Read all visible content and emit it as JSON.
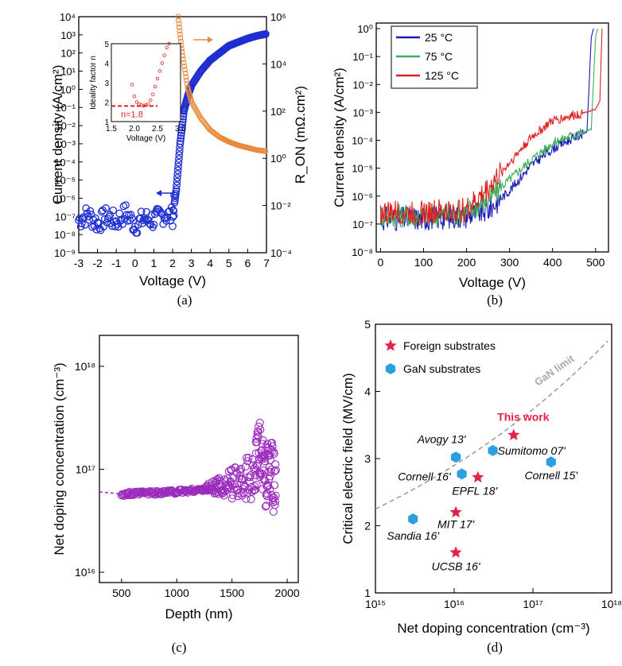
{
  "panels": {
    "a": {
      "label": "(a)"
    },
    "b": {
      "label": "(b)"
    },
    "c": {
      "label": "(c)"
    },
    "d": {
      "label": "(d)"
    }
  },
  "chart_data": [
    {
      "id": "a",
      "type": "scatter",
      "xlabel": "Voltage (V)",
      "ylabel": "Current density  (A/cm²)",
      "y2label": "R_ON  (mΩ.cm²)",
      "xlim": [
        -3,
        7
      ],
      "ylim_log10": [
        -9,
        4
      ],
      "y2lim_log10": [
        -4,
        6
      ],
      "x_ticks": [
        "-3",
        "-2",
        "-1",
        "0",
        "1",
        "2",
        "3",
        "4",
        "5",
        "6",
        "7"
      ],
      "y_ticks": [
        "10⁻⁹",
        "10⁻⁸",
        "10⁻⁷",
        "10⁻⁶",
        "10⁻⁵",
        "10⁻⁴",
        "10⁻³",
        "10⁻²",
        "10⁻¹",
        "10⁰",
        "10¹",
        "10²",
        "10³",
        "10⁴"
      ],
      "y2_ticks": [
        "10⁻⁴",
        "10⁻²",
        "10⁰",
        "10²",
        "10⁴",
        "10⁶"
      ],
      "series": [
        {
          "name": "Current density",
          "color": "#1f2fd1",
          "axis": "left",
          "points": [
            [
              -3,
              -7.2
            ],
            [
              -2.5,
              -6.9
            ],
            [
              -2,
              -7.4
            ],
            [
              -1.5,
              -7.0
            ],
            [
              -1,
              -7.3
            ],
            [
              -0.5,
              -6.8
            ],
            [
              0,
              -7.5
            ],
            [
              0.5,
              -7.1
            ],
            [
              1,
              -7.2
            ],
            [
              1.5,
              -6.9
            ],
            [
              2,
              -7.0
            ],
            [
              2.2,
              -5.5
            ],
            [
              2.4,
              -3.0
            ],
            [
              2.6,
              -1.2
            ],
            [
              2.8,
              -0.4
            ],
            [
              3,
              0.2
            ],
            [
              3.5,
              1.0
            ],
            [
              4,
              1.6
            ],
            [
              4.5,
              2.0
            ],
            [
              5,
              2.4
            ],
            [
              5.5,
              2.6
            ],
            [
              6,
              2.8
            ],
            [
              6.5,
              2.95
            ],
            [
              7,
              3.05
            ]
          ]
        },
        {
          "name": "R_ON",
          "color": "#e8893a",
          "axis": "right",
          "points": [
            [
              2.3,
              6.0
            ],
            [
              2.5,
              4.5
            ],
            [
              2.8,
              3.0
            ],
            [
              3,
              2.4
            ],
            [
              3.5,
              1.7
            ],
            [
              4,
              1.2
            ],
            [
              4.5,
              0.9
            ],
            [
              5,
              0.7
            ],
            [
              5.5,
              0.55
            ],
            [
              6,
              0.45
            ],
            [
              6.5,
              0.35
            ],
            [
              7,
              0.3
            ]
          ]
        }
      ],
      "inset": {
        "xlabel": "Voltage (V)",
        "ylabel": "Ideality factor n",
        "xlim": [
          1.5,
          3.0
        ],
        "ylim": [
          1,
          5
        ],
        "x_ticks": [
          "1.5",
          "2.0",
          "2.5",
          "3.0"
        ],
        "y_ticks": [
          "1",
          "2",
          "3",
          "4",
          "5"
        ],
        "annotation": "n=1.8",
        "reference_n": 1.8,
        "points": [
          [
            1.95,
            2.9
          ],
          [
            2.0,
            2.3
          ],
          [
            2.05,
            2.0
          ],
          [
            2.1,
            1.9
          ],
          [
            2.15,
            1.85
          ],
          [
            2.2,
            1.82
          ],
          [
            2.25,
            1.85
          ],
          [
            2.3,
            1.9
          ],
          [
            2.35,
            2.1
          ],
          [
            2.4,
            2.4
          ],
          [
            2.45,
            2.8
          ],
          [
            2.5,
            3.2
          ],
          [
            2.55,
            3.6
          ],
          [
            2.6,
            4.0
          ],
          [
            2.65,
            4.4
          ],
          [
            2.7,
            4.8
          ],
          [
            2.75,
            5.0
          ]
        ]
      }
    },
    {
      "id": "b",
      "type": "line",
      "xlabel": "Voltage (V)",
      "ylabel": "Current density  (A/cm²)",
      "xlim": [
        -10,
        530
      ],
      "ylim_log10": [
        -8,
        0.2
      ],
      "x_ticks": [
        "0",
        "100",
        "200",
        "300",
        "400",
        "500"
      ],
      "y_ticks": [
        "10⁻⁸",
        "10⁻⁷",
        "10⁻⁶",
        "10⁻⁵",
        "10⁻⁴",
        "10⁻³",
        "10⁻²",
        "10⁻¹",
        "10⁰"
      ],
      "series": [
        {
          "name": "25 °C",
          "color": "#1a1ab8",
          "points": [
            [
              0,
              -6.8
            ],
            [
              100,
              -6.8
            ],
            [
              200,
              -6.7
            ],
            [
              250,
              -6.5
            ],
            [
              300,
              -5.8
            ],
            [
              350,
              -4.9
            ],
            [
              400,
              -4.3
            ],
            [
              450,
              -3.9
            ],
            [
              480,
              -3.7
            ],
            [
              490,
              -0.3
            ],
            [
              495,
              0.0
            ]
          ]
        },
        {
          "name": "75 °C",
          "color": "#3fae5a",
          "points": [
            [
              0,
              -6.7
            ],
            [
              100,
              -6.7
            ],
            [
              200,
              -6.6
            ],
            [
              250,
              -6.1
            ],
            [
              300,
              -5.4
            ],
            [
              350,
              -4.7
            ],
            [
              400,
              -4.1
            ],
            [
              450,
              -3.8
            ],
            [
              490,
              -3.6
            ],
            [
              500,
              -0.3
            ],
            [
              505,
              0.0
            ]
          ]
        },
        {
          "name": "125 °C",
          "color": "#e02020",
          "points": [
            [
              0,
              -6.6
            ],
            [
              100,
              -6.6
            ],
            [
              200,
              -6.5
            ],
            [
              240,
              -5.9
            ],
            [
              300,
              -4.8
            ],
            [
              350,
              -3.9
            ],
            [
              400,
              -3.3
            ],
            [
              450,
              -3.1
            ],
            [
              500,
              -2.9
            ],
            [
              510,
              -2.6
            ],
            [
              515,
              0.0
            ]
          ]
        }
      ]
    },
    {
      "id": "c",
      "type": "scatter",
      "xlabel": "Depth (nm)",
      "ylabel": "Net doping concentration (cm⁻³)",
      "xlim": [
        300,
        2100
      ],
      "ylim_log10": [
        15.9,
        18.3
      ],
      "x_ticks": [
        "500",
        "1000",
        "1500",
        "2000"
      ],
      "y_ticks": [
        "10¹⁶",
        "10¹⁷",
        "10¹⁸"
      ],
      "color": "#9b2bbd",
      "points": [
        [
          300,
          16.78
        ],
        [
          400,
          16.77
        ],
        [
          500,
          16.76
        ],
        [
          600,
          16.76
        ],
        [
          700,
          16.77
        ],
        [
          800,
          16.77
        ],
        [
          900,
          16.78
        ],
        [
          1000,
          16.78
        ],
        [
          1100,
          16.79
        ],
        [
          1200,
          16.8
        ],
        [
          1300,
          16.82
        ],
        [
          1400,
          16.84
        ],
        [
          1500,
          16.86
        ],
        [
          1600,
          16.9
        ],
        [
          1700,
          16.95
        ],
        [
          1750,
          17.2
        ],
        [
          1800,
          16.9
        ],
        [
          1850,
          17.0
        ],
        [
          1900,
          16.8
        ]
      ]
    },
    {
      "id": "d",
      "type": "scatter",
      "xlabel": "Net doping concentration (cm⁻³)",
      "ylabel": "Critical electric field (MV/cm)",
      "xlim_log10": [
        15,
        18
      ],
      "ylim": [
        1,
        5
      ],
      "x_ticks": [
        "10¹⁵",
        "10¹⁶",
        "10¹⁷",
        "10¹⁸"
      ],
      "y_ticks": [
        "1",
        "2",
        "3",
        "4",
        "5"
      ],
      "limit_label": "GaN limit",
      "legend": [
        {
          "name": "Foreign substrates",
          "color": "#e4234a",
          "marker": "star"
        },
        {
          "name": "GaN substrates",
          "color": "#2b9fe0",
          "marker": "hexagon"
        }
      ],
      "points": [
        {
          "label": "This work",
          "x": 5.7e+16,
          "y": 3.35,
          "group": "Foreign substrates",
          "highlight": true
        },
        {
          "label": "EPFL 18'",
          "x": 2e+16,
          "y": 2.72,
          "group": "Foreign substrates"
        },
        {
          "label": "MIT 17'",
          "x": 1.05e+16,
          "y": 2.2,
          "group": "Foreign substrates"
        },
        {
          "label": "UCSB 16'",
          "x": 1.05e+16,
          "y": 1.6,
          "group": "Foreign substrates"
        },
        {
          "label": "Avogy 13'",
          "x": 1.05e+16,
          "y": 3.02,
          "group": "GaN substrates"
        },
        {
          "label": "Sumitomo 07'",
          "x": 3.1e+16,
          "y": 3.12,
          "group": "GaN substrates"
        },
        {
          "label": "Cornell 16'",
          "x": 1.25e+16,
          "y": 2.77,
          "group": "GaN substrates"
        },
        {
          "label": "Cornell 15'",
          "x": 1.7e+17,
          "y": 2.95,
          "group": "GaN substrates"
        },
        {
          "label": "Sandia 16'",
          "x": 3000000000000000.0,
          "y": 2.1,
          "group": "GaN substrates"
        }
      ]
    }
  ]
}
